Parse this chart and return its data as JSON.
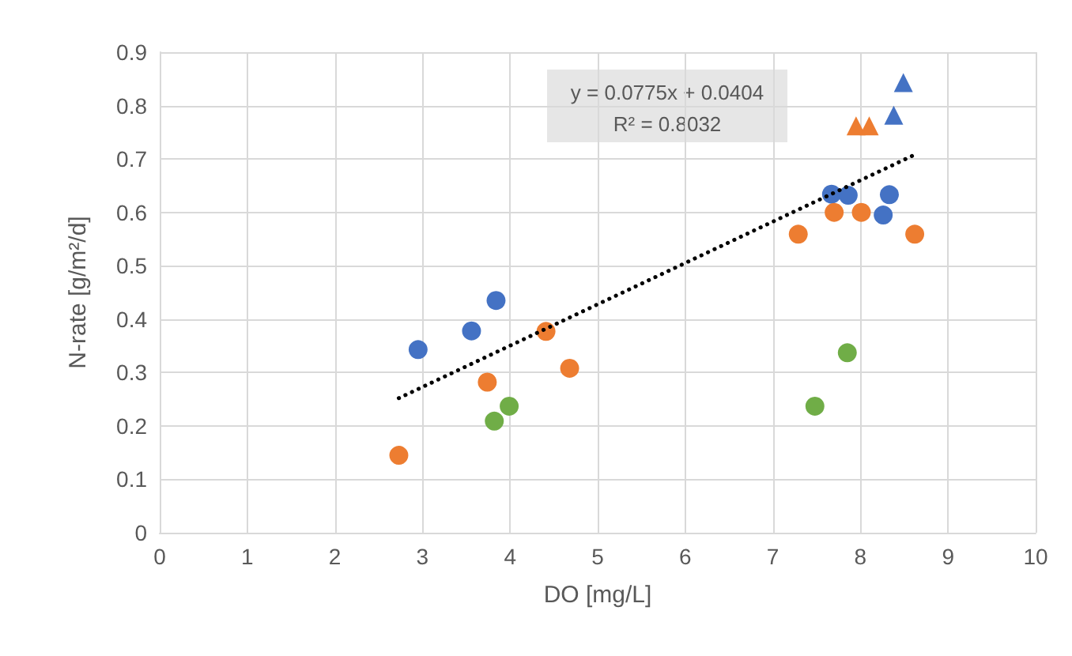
{
  "chart_data": {
    "type": "scatter",
    "xlabel": "DO [mg/L]",
    "ylabel": "N-rate [g/m²/d]",
    "annotations": [
      "y = 0.0775x + 0.0404",
      "R² = 0.8032"
    ],
    "xlim": [
      0,
      10
    ],
    "xticks": [
      0,
      1,
      2,
      3,
      4,
      5,
      6,
      7,
      8,
      9,
      10
    ],
    "ylim": [
      0,
      0.9
    ],
    "yticks": [
      0,
      0.1,
      0.2,
      0.3,
      0.4,
      0.5,
      0.6,
      0.7,
      0.8,
      0.9
    ],
    "grid": true,
    "series": [
      {
        "color": "#4472c4",
        "marker": "circle",
        "x": [
          2.95,
          3.56,
          3.84,
          7.67,
          7.86,
          8.33,
          8.26
        ],
        "values": [
          0.343,
          0.378,
          0.435,
          0.634,
          0.632,
          0.633,
          0.595
        ]
      },
      {
        "color": "#ed7d31",
        "marker": "circle",
        "x": [
          2.73,
          3.74,
          4.41,
          4.68,
          7.29,
          7.7,
          8.01,
          8.62
        ],
        "values": [
          0.145,
          0.282,
          0.377,
          0.308,
          0.559,
          0.6,
          0.6,
          0.559
        ]
      },
      {
        "color": "#70ad47",
        "marker": "circle",
        "x": [
          3.82,
          3.99,
          7.48,
          7.85
        ],
        "values": [
          0.209,
          0.237,
          0.237,
          0.337
        ]
      },
      {
        "color": "#4472c4",
        "marker": "triangle",
        "x": [
          8.38,
          8.49
        ],
        "values": [
          0.782,
          0.843
        ]
      },
      {
        "color": "#ed7d31",
        "marker": "triangle",
        "x": [
          7.95,
          8.1
        ],
        "values": [
          0.762,
          0.762
        ]
      },
      {
        "type": "line",
        "color": "#000000",
        "marker": "none",
        "line_style": "dotted",
        "x": [
          2.73,
          8.62
        ],
        "values": [
          0.252,
          0.708
        ]
      }
    ]
  }
}
